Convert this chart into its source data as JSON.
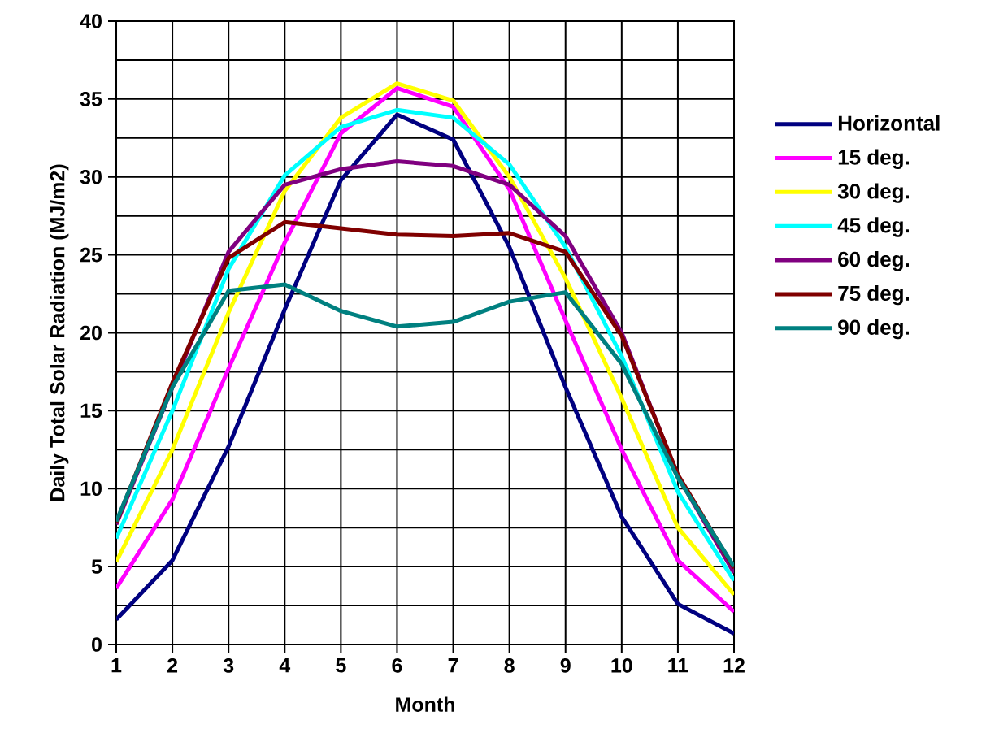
{
  "chart_data": {
    "type": "line",
    "xlabel": "Month",
    "ylabel": "Daily Total Solar Radiation (MJ/m2)",
    "x": [
      1,
      2,
      3,
      4,
      5,
      6,
      7,
      8,
      9,
      10,
      11,
      12
    ],
    "xlim": [
      1,
      12
    ],
    "xticks": [
      1,
      2,
      3,
      4,
      5,
      6,
      7,
      8,
      9,
      10,
      11,
      12
    ],
    "ylim": [
      0,
      40
    ],
    "yticks": [
      0,
      5,
      10,
      15,
      20,
      25,
      30,
      35,
      40
    ],
    "grid": true,
    "legend": "right",
    "marker": "none",
    "line_style": "solid",
    "series": [
      {
        "name": "Horizontal",
        "color": "#000080",
        "values": [
          1.6,
          5.4,
          12.7,
          21.5,
          29.8,
          34.0,
          32.4,
          25.5,
          16.5,
          8.2,
          2.6,
          0.7
        ]
      },
      {
        "name": "15 deg.",
        "color": "#ff00ff",
        "values": [
          3.6,
          9.3,
          17.7,
          25.8,
          32.8,
          35.7,
          34.5,
          29.2,
          20.8,
          12.5,
          5.4,
          2.1
        ]
      },
      {
        "name": "30 deg.",
        "color": "#ffff00",
        "values": [
          5.3,
          12.5,
          21.3,
          29.1,
          33.8,
          36.0,
          34.9,
          30.0,
          23.5,
          15.8,
          7.5,
          3.2
        ]
      },
      {
        "name": "45 deg.",
        "color": "#00ffff",
        "values": [
          6.8,
          15.0,
          24.1,
          30.1,
          33.2,
          34.3,
          33.8,
          30.8,
          25.5,
          18.5,
          9.8,
          4.1
        ]
      },
      {
        "name": "60 deg.",
        "color": "#800080",
        "values": [
          7.7,
          16.5,
          25.2,
          29.5,
          30.5,
          31.0,
          30.7,
          29.5,
          26.2,
          20.0,
          10.8,
          4.6
        ]
      },
      {
        "name": "75 deg.",
        "color": "#800000",
        "values": [
          7.8,
          16.8,
          24.8,
          27.1,
          26.7,
          26.3,
          26.2,
          26.4,
          25.2,
          19.8,
          10.9,
          4.9
        ]
      },
      {
        "name": "90 deg.",
        "color": "#008080",
        "values": [
          7.9,
          16.5,
          22.7,
          23.1,
          21.4,
          20.4,
          20.7,
          22.0,
          22.6,
          18.0,
          10.7,
          5.0
        ]
      }
    ]
  }
}
